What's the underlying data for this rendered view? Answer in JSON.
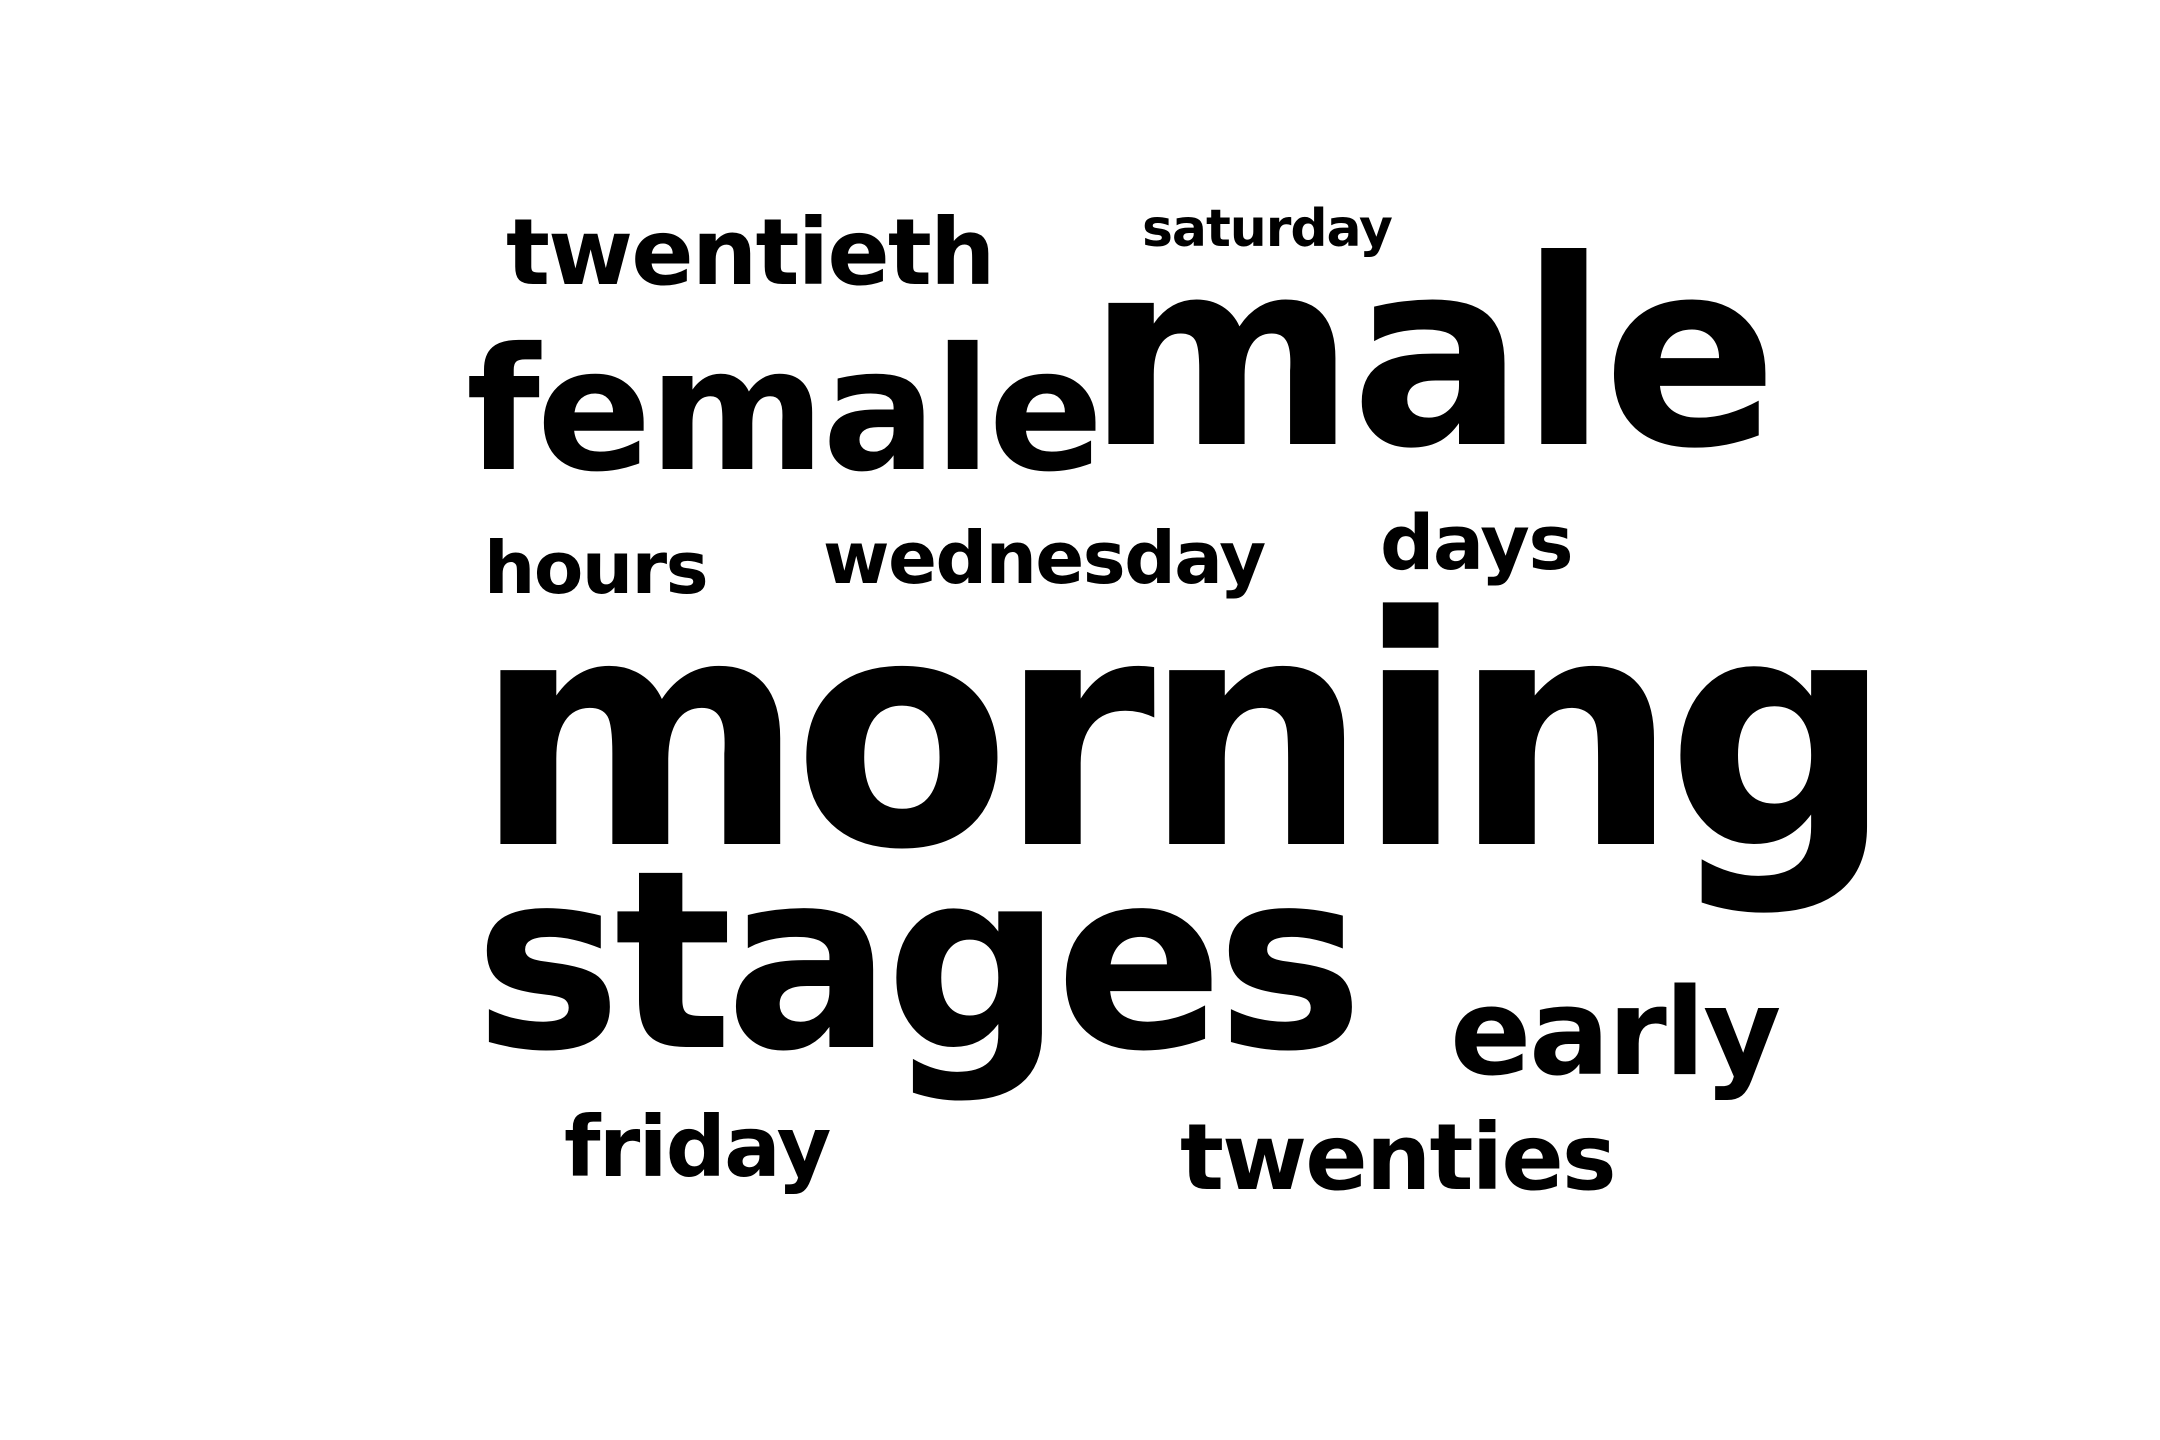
{
  "word_cloud": {
    "words": {
      "twentieth": "twentieth",
      "saturday": "saturday",
      "female": "female",
      "male": "male",
      "hours": "hours",
      "wednesday": "wednesday",
      "days": "days",
      "morning": "morning",
      "stages": "stages",
      "early": "early",
      "friday": "friday",
      "twenties": "twenties"
    },
    "text_color": "#000000",
    "background_color": "#ffffff"
  }
}
